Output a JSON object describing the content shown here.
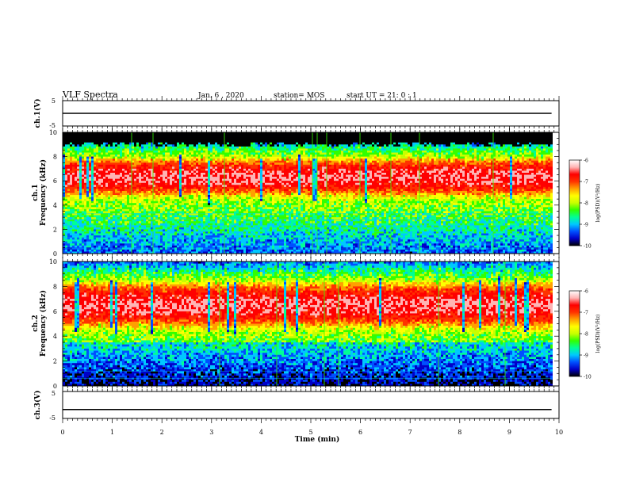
{
  "header": {
    "title": "VLF Spectra",
    "date": "Jan. 6 , 2020",
    "station": "station= MOS",
    "start": "start UT = 21: 0 : 1"
  },
  "chart_data": [
    {
      "type": "line",
      "panel": "ch1-waveform",
      "ylabel": "ch.1(V)",
      "ylim": [
        -5,
        5
      ],
      "yticks": [
        "5",
        "-5"
      ],
      "xlim": [
        0,
        10
      ],
      "series": [
        {
          "x": [
            0,
            9.85
          ],
          "values": [
            0,
            0
          ]
        }
      ]
    },
    {
      "type": "heatmap",
      "panel": "ch1-spectrogram",
      "ylabel_line1": "ch.1",
      "ylabel_line2": "Frequency (kHz)",
      "ylim": [
        0,
        10
      ],
      "yticks": [
        "0",
        "2",
        "4",
        "6",
        "8",
        "10"
      ],
      "xlim": [
        0,
        10
      ],
      "data_end_min": 9.85,
      "emission_band_khz": [
        4.5,
        8
      ],
      "emission_peak_khz": 6.3,
      "no_data_above_khz": 9
    },
    {
      "type": "heatmap",
      "panel": "ch2-spectrogram",
      "ylabel_line1": "ch.2",
      "ylabel_line2": "Frequency (kHz)",
      "ylim": [
        0,
        10
      ],
      "yticks": [
        "0",
        "2",
        "4",
        "6",
        "8",
        "10"
      ],
      "xlim": [
        0,
        10
      ],
      "data_end_min": 9.85,
      "emission_band_khz": [
        4.5,
        8.5
      ],
      "emission_peak_khz": 6.5
    },
    {
      "type": "line",
      "panel": "ch3-waveform",
      "ylabel": "ch.3(V)",
      "ylim": [
        -5,
        5
      ],
      "yticks": [
        "5",
        "-5"
      ],
      "xlim": [
        0,
        10
      ],
      "series": [
        {
          "x": [
            0,
            9.85
          ],
          "values": [
            -1.7,
            -1.7
          ]
        }
      ]
    }
  ],
  "xaxis": {
    "label": "Time (min)",
    "ticks": [
      "0",
      "1",
      "2",
      "3",
      "4",
      "5",
      "6",
      "7",
      "8",
      "9",
      "10"
    ]
  },
  "colorbar": {
    "label": "log(PSD)(V²/Hz)",
    "ticks": [
      "-6",
      "-7",
      "-8",
      "-9",
      "-10"
    ],
    "range": [
      -10,
      -6
    ],
    "colors": [
      "#000000",
      "#0000c8",
      "#0050ff",
      "#00c8ff",
      "#00ff96",
      "#32ff00",
      "#c8ff00",
      "#ffff00",
      "#ffa000",
      "#ff3200",
      "#ff0000",
      "#ffb4b4",
      "#ffffff"
    ]
  }
}
